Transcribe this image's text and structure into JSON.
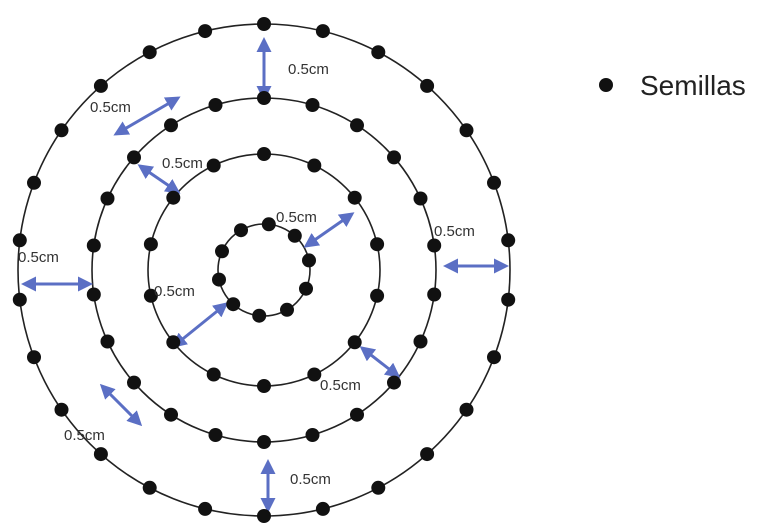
{
  "colors": {
    "ring": "#222222",
    "seed": "#111111",
    "arrow": "#5b6fc4",
    "background": "#ffffff"
  },
  "legend": {
    "label": "Semillas",
    "icon": "black-dot"
  },
  "dimension_label": "0.5cm",
  "rings": [
    {
      "name": "inner-ring",
      "seed_count": 10
    },
    {
      "name": "second-ring",
      "seed_count": 14
    },
    {
      "name": "third-ring",
      "seed_count": 22
    },
    {
      "name": "outer-ring",
      "seed_count": 26
    }
  ],
  "spacing_annotations": [
    {
      "name": "spacing-top",
      "label": "0.5cm"
    },
    {
      "name": "spacing-upper-left",
      "label": "0.5cm"
    },
    {
      "name": "spacing-left-middle",
      "label": "0.5cm"
    },
    {
      "name": "spacing-left",
      "label": "0.5cm"
    },
    {
      "name": "spacing-center-right",
      "label": "0.5cm"
    },
    {
      "name": "spacing-center-left",
      "label": "0.5cm"
    },
    {
      "name": "spacing-right",
      "label": "0.5cm"
    },
    {
      "name": "spacing-lower-right",
      "label": "0.5cm"
    },
    {
      "name": "spacing-lower-left",
      "label": "0.5cm"
    },
    {
      "name": "spacing-bottom",
      "label": "0.5cm"
    }
  ]
}
